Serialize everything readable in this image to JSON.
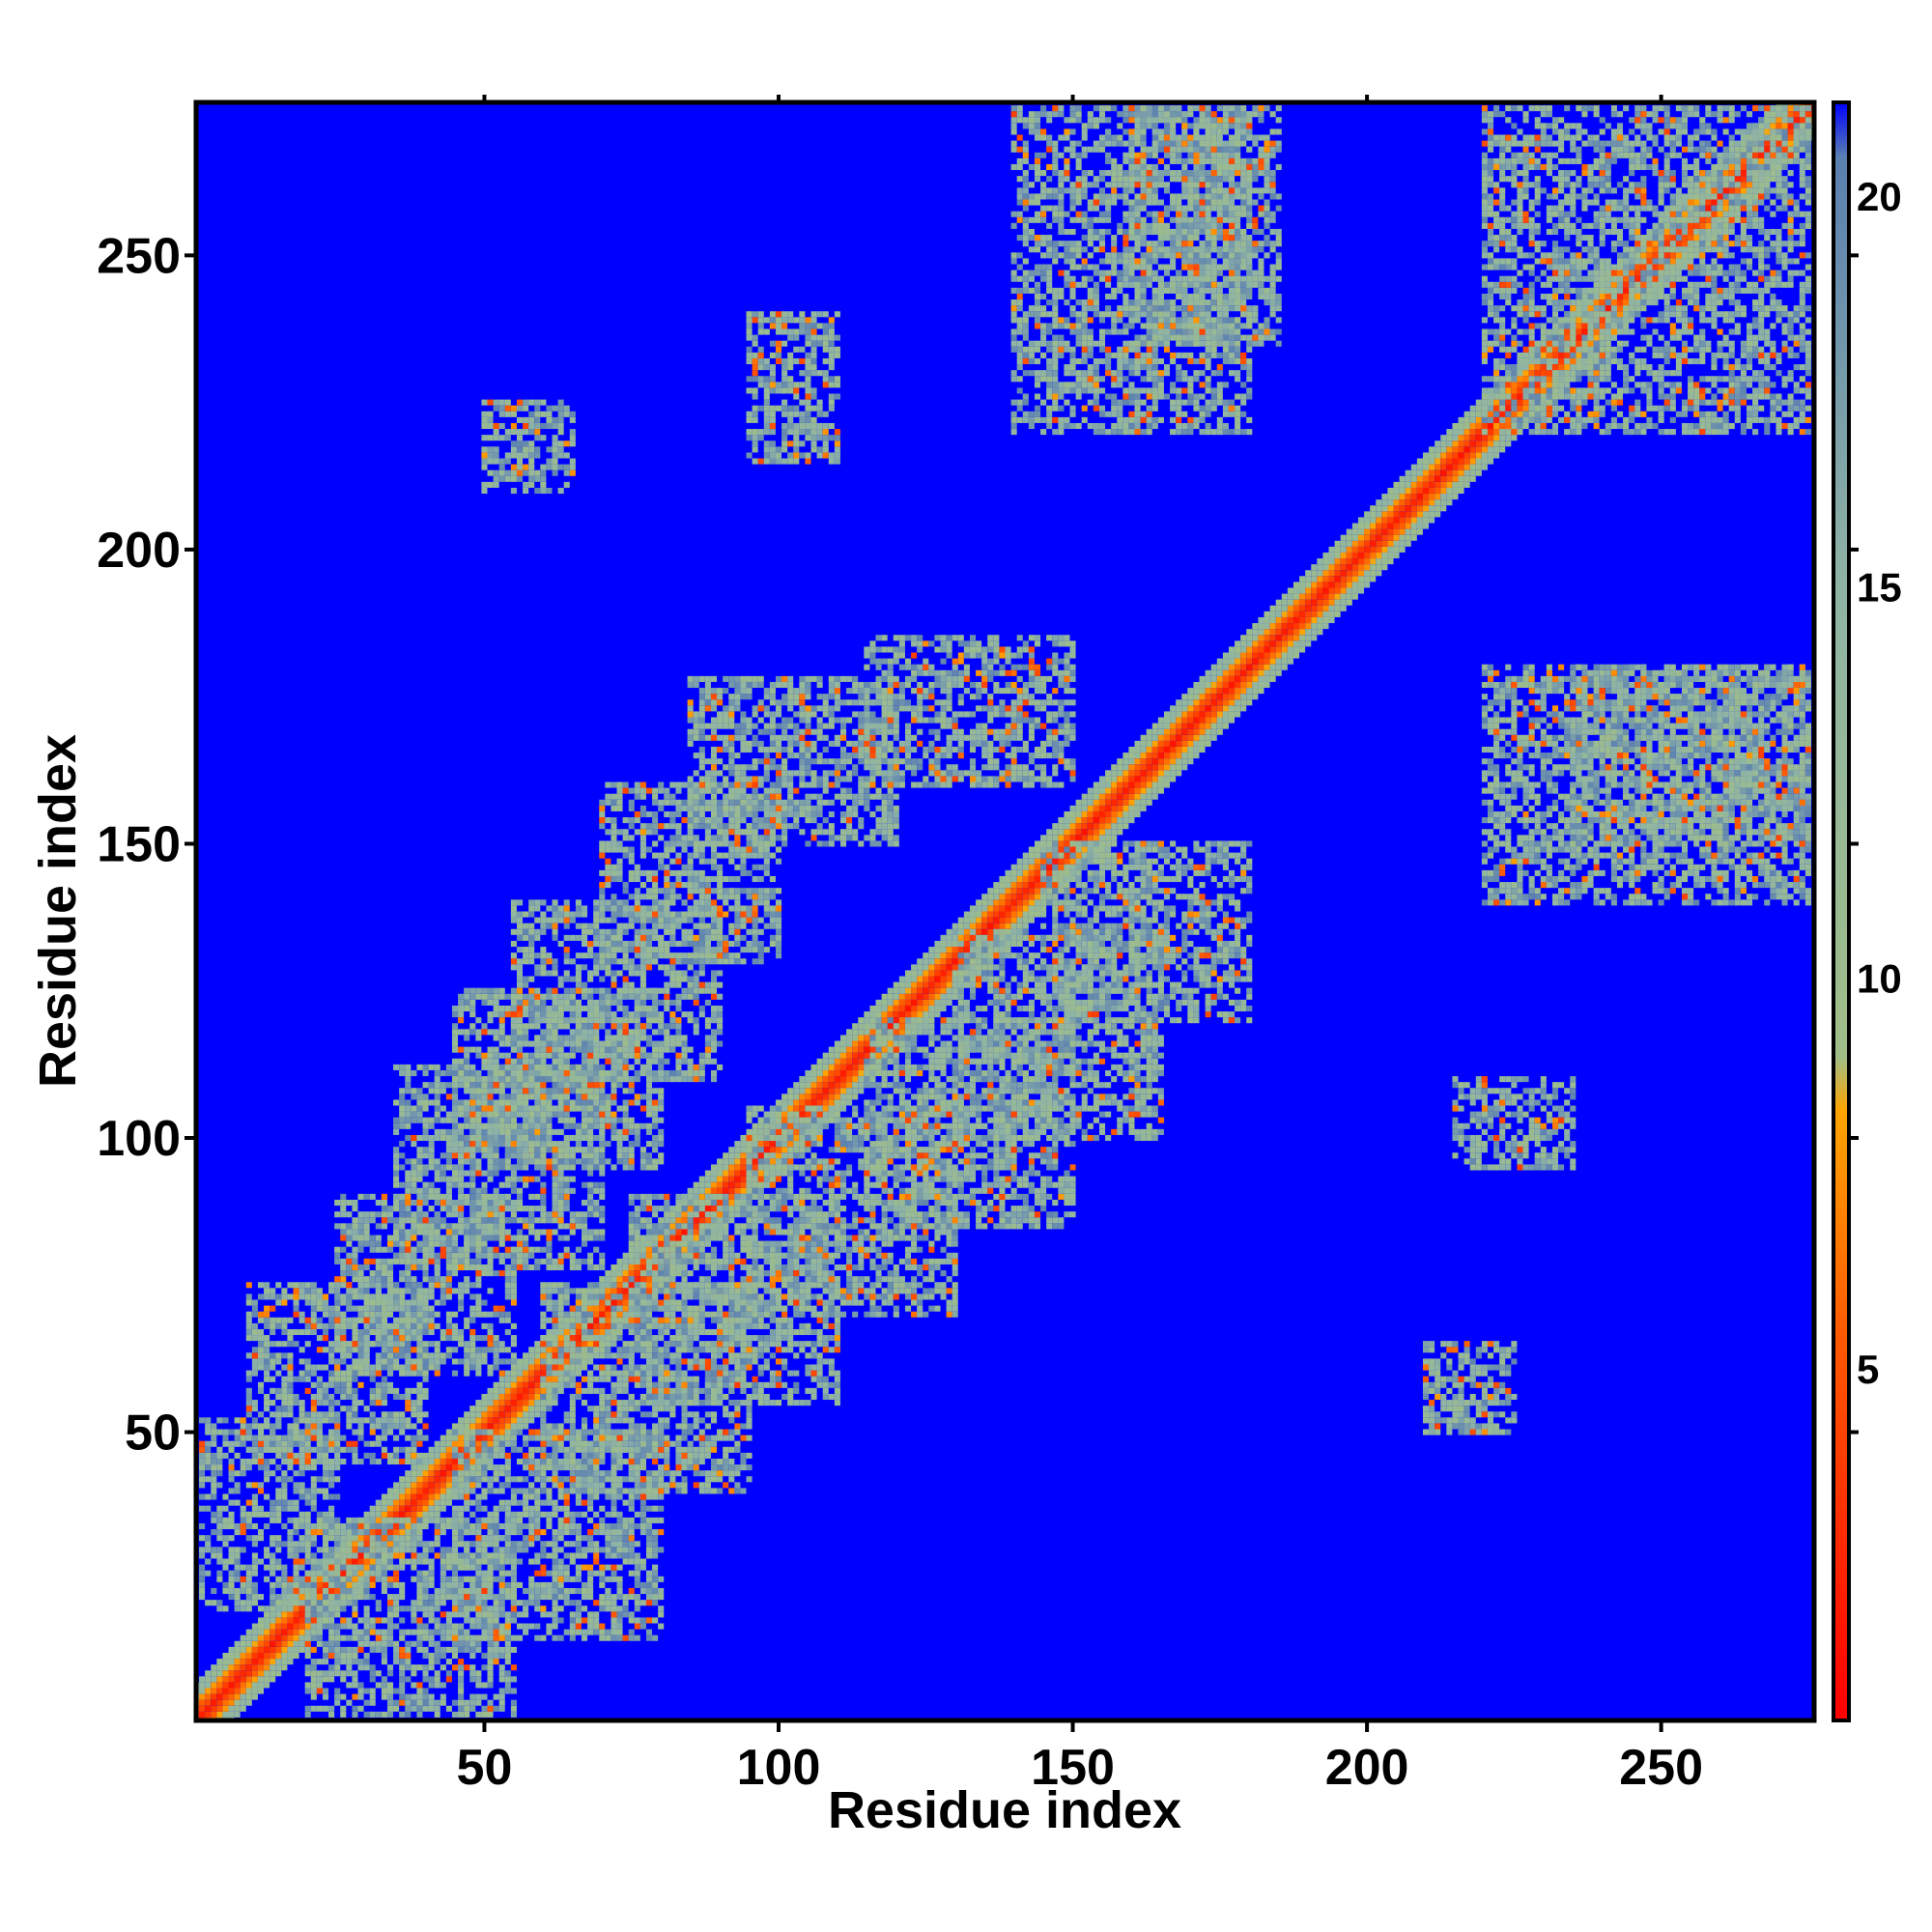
{
  "chart_data": {
    "type": "heatmap",
    "title": "",
    "xlabel": "Residue index",
    "ylabel": "Residue index",
    "xlim": [
      1,
      276
    ],
    "ylim": [
      1,
      276
    ],
    "x_ticks": [
      {
        "value": 50,
        "label": "50"
      },
      {
        "value": 100,
        "label": "100"
      },
      {
        "value": 150,
        "label": "150"
      },
      {
        "value": 200,
        "label": "200"
      },
      {
        "value": 250,
        "label": "250"
      }
    ],
    "y_ticks": [
      {
        "value": 50,
        "label": "50"
      },
      {
        "value": 100,
        "label": "100"
      },
      {
        "value": 150,
        "label": "150"
      },
      {
        "value": 200,
        "label": "200"
      },
      {
        "value": 250,
        "label": "250"
      }
    ],
    "colorbar": {
      "range": [
        0.5,
        21.2
      ],
      "ticks": [
        {
          "value": 5,
          "label": "5"
        },
        {
          "value": 10,
          "label": "10"
        },
        {
          "value": 15,
          "label": "15"
        },
        {
          "value": 20,
          "label": "20"
        }
      ],
      "stops": [
        {
          "value": 0.5,
          "color": "#ff0000"
        },
        {
          "value": 5.5,
          "color": "#ff5a00"
        },
        {
          "value": 8.3,
          "color": "#ffa500"
        },
        {
          "value": 9.0,
          "color": "#9fbe88"
        },
        {
          "value": 15.0,
          "color": "#8fb4a4"
        },
        {
          "value": 20.5,
          "color": "#5a7fb0"
        },
        {
          "value": 21.2,
          "color": "#0000ff"
        }
      ]
    },
    "background_color": "#0000ff",
    "symmetric": true,
    "diagonal_band": {
      "center_value": 1.5,
      "halfwidth_residues": 6
    },
    "contact_regions": [
      {
        "x": [
          2,
          25
        ],
        "y": [
          20,
          52
        ]
      },
      {
        "x": [
          10,
          40
        ],
        "y": [
          45,
          75
        ]
      },
      {
        "x": [
          25,
          55
        ],
        "y": [
          60,
          90
        ]
      },
      {
        "x": [
          35,
          70
        ],
        "y": [
          78,
          112
        ]
      },
      {
        "x": [
          45,
          80
        ],
        "y": [
          95,
          125
        ]
      },
      {
        "x": [
          55,
          90
        ],
        "y": [
          110,
          140
        ]
      },
      {
        "x": [
          70,
          100
        ],
        "y": [
          130,
          160
        ]
      },
      {
        "x": [
          85,
          120
        ],
        "y": [
          150,
          178
        ]
      },
      {
        "x": [
          115,
          150
        ],
        "y": [
          160,
          185
        ]
      },
      {
        "x": [
          20,
          55
        ],
        "y": [
          2,
          35
        ]
      },
      {
        "x": [
          45,
          80
        ],
        "y": [
          15,
          50
        ]
      },
      {
        "x": [
          60,
          95
        ],
        "y": [
          40,
          75
        ]
      },
      {
        "x": [
          75,
          110
        ],
        "y": [
          55,
          90
        ]
      },
      {
        "x": [
          95,
          130
        ],
        "y": [
          70,
          105
        ]
      },
      {
        "x": [
          115,
          150
        ],
        "y": [
          85,
          120
        ]
      },
      {
        "x": [
          130,
          165
        ],
        "y": [
          100,
          135
        ]
      },
      {
        "x": [
          145,
          180
        ],
        "y": [
          120,
          150
        ]
      },
      {
        "x": [
          140,
          180
        ],
        "y": [
          220,
          275
        ]
      },
      {
        "x": [
          160,
          185
        ],
        "y": [
          235,
          275
        ]
      },
      {
        "x": [
          220,
          275
        ],
        "y": [
          140,
          180
        ]
      },
      {
        "x": [
          235,
          275
        ],
        "y": [
          150,
          180
        ]
      },
      {
        "x": [
          220,
          275
        ],
        "y": [
          220,
          275
        ]
      },
      {
        "x": [
          95,
          110
        ],
        "y": [
          215,
          240
        ]
      },
      {
        "x": [
          50,
          65
        ],
        "y": [
          210,
          225
        ]
      },
      {
        "x": [
          215,
          235
        ],
        "y": [
          95,
          110
        ]
      },
      {
        "x": [
          210,
          225
        ],
        "y": [
          50,
          65
        ]
      }
    ]
  }
}
